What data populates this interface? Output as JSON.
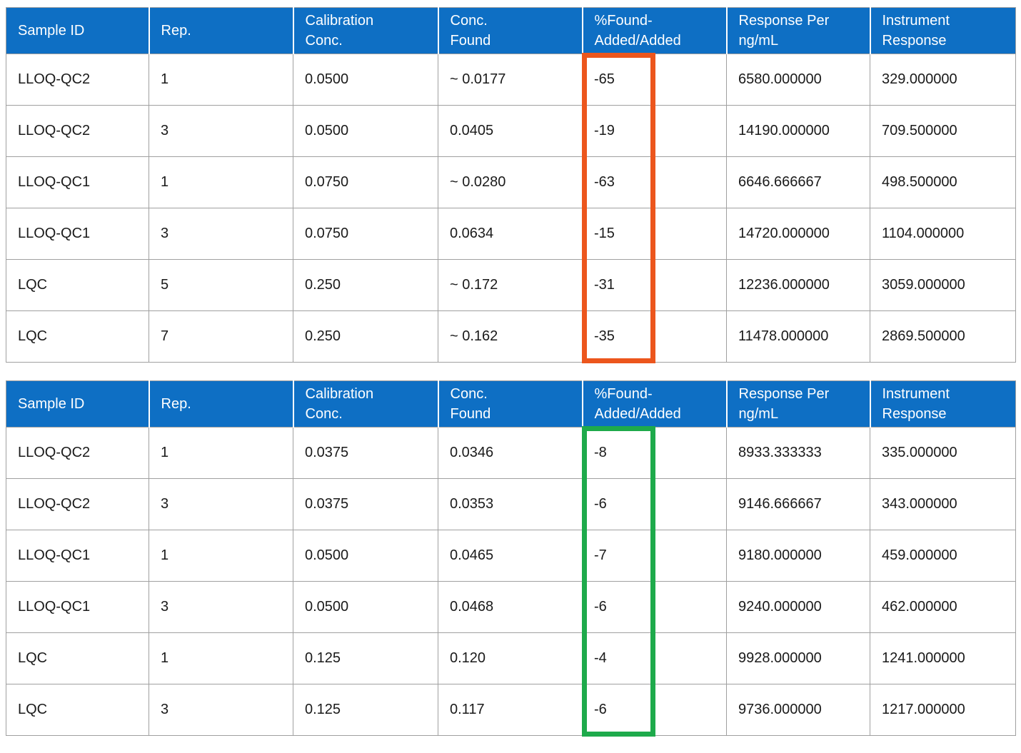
{
  "theme": {
    "page_bg": "#FFFFFF",
    "header_bg": "#0E6FC4",
    "header_text": "#FFFFFF",
    "body_text": "#1A1A1A",
    "grid_line": "#A0A0A0",
    "highlight_orange": "#EC561D",
    "highlight_green": "#1EAA4B"
  },
  "columns": [
    "Sample ID",
    "Rep.",
    "Calibration\nConc.",
    "Conc.\nFound",
    "%Found-\nAdded/Added",
    "Response Per\nng/mL",
    "Instrument\nResponse"
  ],
  "tables": [
    {
      "rows": [
        [
          "LLOQ-QC2",
          "1",
          "0.0500",
          "~ 0.0177",
          "-65",
          "6580.000000",
          "329.000000"
        ],
        [
          "LLOQ-QC2",
          "3",
          "0.0500",
          "0.0405",
          "-19",
          "14190.000000",
          "709.500000"
        ],
        [
          "LLOQ-QC1",
          "1",
          "0.0750",
          "~ 0.0280",
          "-63",
          "6646.666667",
          "498.500000"
        ],
        [
          "LLOQ-QC1",
          "3",
          "0.0750",
          "0.0634",
          "-15",
          "14720.000000",
          "1104.000000"
        ],
        [
          "LQC",
          "5",
          "0.250",
          "~ 0.172",
          "-31",
          "12236.000000",
          "3059.000000"
        ],
        [
          "LQC",
          "7",
          "0.250",
          "~ 0.162",
          "-35",
          "11478.000000",
          "2869.500000"
        ]
      ]
    },
    {
      "rows": [
        [
          "LLOQ-QC2",
          "1",
          "0.0375",
          "0.0346",
          "-8",
          "8933.333333",
          "335.000000"
        ],
        [
          "LLOQ-QC2",
          "3",
          "0.0375",
          "0.0353",
          "-6",
          "9146.666667",
          "343.000000"
        ],
        [
          "LLOQ-QC1",
          "1",
          "0.0500",
          "0.0465",
          "-7",
          "9180.000000",
          "459.000000"
        ],
        [
          "LLOQ-QC1",
          "3",
          "0.0500",
          "0.0468",
          "-6",
          "9240.000000",
          "462.000000"
        ],
        [
          "LQC",
          "1",
          "0.125",
          "0.120",
          "-4",
          "9928.000000",
          "1241.000000"
        ],
        [
          "LQC",
          "3",
          "0.125",
          "0.117",
          "-6",
          "9736.000000",
          "1217.000000"
        ]
      ]
    }
  ],
  "annotations": [
    {
      "shape": "rectangle",
      "color": "#EC561D",
      "table_index": 0,
      "highlighted_column": "%Found-Added/Added"
    },
    {
      "shape": "rectangle",
      "color": "#1EAA4B",
      "table_index": 1,
      "highlighted_column": "%Found-Added/Added"
    }
  ]
}
